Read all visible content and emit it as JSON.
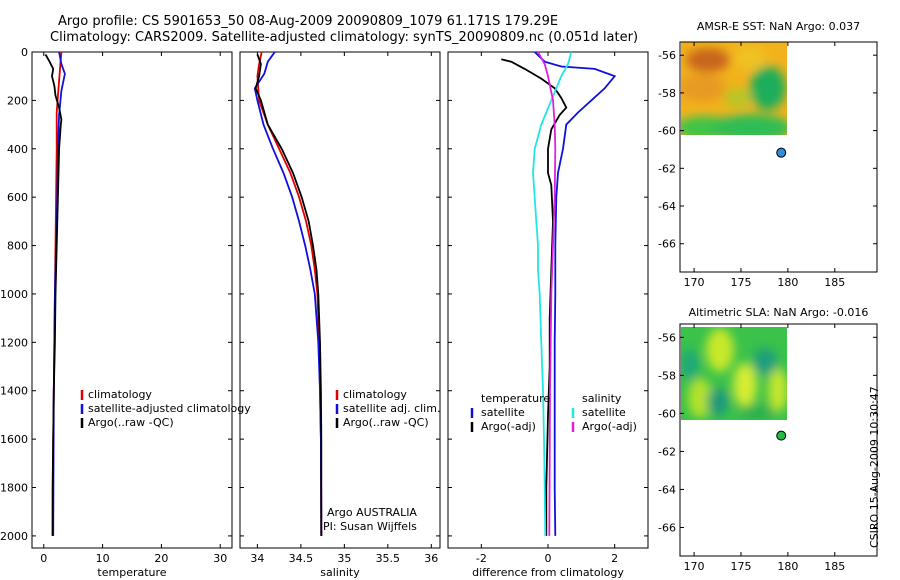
{
  "header": {
    "line1": "Argo profile: CS 5901653_50 08-Aug-2009 20090809_1079 61.171S 179.29E",
    "line2": "Climatology: CARS2009. Satellite-adjusted climatology: synTS_20090809.nc (0.051d later)"
  },
  "stamp": "CSIRO 15-Aug-2009 10:30:47",
  "colors": {
    "red": "#e00000",
    "blue": "#1010dd",
    "black": "#000000",
    "cyan": "#22e5e5",
    "magenta": "#dd22dd"
  },
  "chart_data": [
    {
      "type": "line",
      "xlabel": "temperature",
      "xlim": [
        -2,
        32
      ],
      "xticks": [
        0,
        10,
        20,
        30
      ],
      "ylim": [
        2050,
        0
      ],
      "yticks": [
        0,
        200,
        400,
        600,
        800,
        1000,
        1200,
        1400,
        1600,
        1800,
        2000
      ],
      "legend": [
        "climatology",
        "satellite-adjusted climatology",
        "Argo(..raw -QC)"
      ],
      "series": [
        {
          "name": "climatology",
          "color": "red",
          "x": [
            3.0,
            2.8,
            2.5,
            2.2,
            2.2,
            2.1,
            2.0,
            1.9,
            1.8,
            1.7,
            1.6,
            1.5
          ],
          "y": [
            0,
            60,
            150,
            250,
            400,
            600,
            800,
            1000,
            1200,
            1400,
            1600,
            2000
          ]
        },
        {
          "name": "satellite-adjusted climatology",
          "color": "blue",
          "x": [
            2.6,
            3.0,
            3.6,
            3.0,
            2.6,
            2.4,
            2.3,
            2.1,
            1.9,
            1.7,
            1.6
          ],
          "y": [
            0,
            50,
            90,
            160,
            260,
            400,
            600,
            800,
            1000,
            1400,
            2000
          ]
        },
        {
          "name": "Argo(..raw -QC)",
          "color": "black",
          "x": [
            0.3,
            1.0,
            1.6,
            1.4,
            1.8,
            2.0,
            2.6,
            3.0,
            2.9,
            2.6,
            2.4,
            2.2,
            2.0,
            1.9,
            1.7,
            1.6,
            1.5,
            1.5
          ],
          "y": [
            10,
            40,
            70,
            100,
            140,
            180,
            230,
            280,
            300,
            400,
            600,
            800,
            1000,
            1200,
            1400,
            1600,
            1800,
            2000
          ]
        }
      ]
    },
    {
      "type": "line",
      "xlabel": "salinity",
      "xlim": [
        33.8,
        36.1
      ],
      "xticks": [
        34,
        34.5,
        35,
        35.5,
        36
      ],
      "ylim": [
        2050,
        0
      ],
      "legend": [
        "climatology",
        "satellite adj. clim.",
        "Argo(..raw -QC)"
      ],
      "annotation": [
        "Argo AUSTRALIA",
        "PI: Susan Wijffels"
      ],
      "series": [
        {
          "name": "climatology",
          "color": "red",
          "x": [
            34.05,
            34.02,
            34.0,
            34.02,
            34.12,
            34.25,
            34.38,
            34.48,
            34.56,
            34.62,
            34.66,
            34.69,
            34.71,
            34.72,
            34.73,
            34.735
          ],
          "y": [
            0,
            50,
            100,
            200,
            300,
            400,
            500,
            600,
            700,
            800,
            900,
            1000,
            1200,
            1400,
            1600,
            2000
          ]
        },
        {
          "name": "satellite adj. clim.",
          "color": "blue",
          "x": [
            34.2,
            34.12,
            34.08,
            33.97,
            34.0,
            34.07,
            34.18,
            34.3,
            34.4,
            34.48,
            34.55,
            34.61,
            34.66,
            34.7,
            34.72,
            34.73,
            34.735
          ],
          "y": [
            0,
            40,
            90,
            150,
            200,
            300,
            400,
            500,
            600,
            700,
            800,
            900,
            1000,
            1200,
            1400,
            1600,
            2000
          ]
        },
        {
          "name": "Argo(..raw -QC)",
          "color": "black",
          "x": [
            34.0,
            34.04,
            34.02,
            33.98,
            34.04,
            34.12,
            34.28,
            34.41,
            34.51,
            34.59,
            34.64,
            34.68,
            34.7,
            34.72,
            34.73,
            34.735,
            34.735
          ],
          "y": [
            10,
            50,
            100,
            150,
            200,
            300,
            400,
            500,
            600,
            700,
            800,
            900,
            1000,
            1200,
            1400,
            1600,
            2000
          ]
        }
      ]
    },
    {
      "type": "line",
      "xlabel": "difference from climatology",
      "xlim": [
        -3,
        3
      ],
      "xticks": [
        -2,
        0,
        2
      ],
      "ylim": [
        2050,
        0
      ],
      "legend_columns": [
        {
          "header": "temperature",
          "entries": [
            "satellite",
            "Argo(-adj)"
          ]
        },
        {
          "header": "salinity",
          "entries": [
            "satellite",
            "Argo(-adj)"
          ]
        }
      ],
      "series": [
        {
          "name": "temperature satellite",
          "color": "blue",
          "x": [
            -0.4,
            -0.1,
            0.4,
            1.4,
            2.0,
            1.7,
            1.3,
            0.9,
            0.55,
            0.45,
            0.3,
            0.25,
            0.22,
            0.22,
            0.2,
            0.2,
            0.2,
            0.2,
            0.22
          ],
          "y": [
            0,
            40,
            60,
            70,
            100,
            150,
            200,
            250,
            300,
            400,
            500,
            600,
            800,
            1000,
            1200,
            1400,
            1600,
            1800,
            2000
          ]
        },
        {
          "name": "temperature Argo(-adj)",
          "color": "black",
          "x": [
            -1.4,
            -1.1,
            -0.7,
            -0.2,
            0.2,
            0.4,
            0.55,
            0.35,
            0.1,
            0.0,
            0.0,
            0.1,
            0.15,
            0.1,
            0.05,
            0.05,
            0.0,
            -0.05,
            -0.05
          ],
          "y": [
            30,
            40,
            70,
            110,
            150,
            190,
            230,
            260,
            320,
            400,
            500,
            550,
            700,
            900,
            1100,
            1300,
            1500,
            1800,
            2000
          ]
        },
        {
          "name": "salinity satellite",
          "color": "cyan",
          "x": [
            0.7,
            0.6,
            0.4,
            0.1,
            -0.2,
            -0.4,
            -0.45,
            -0.4,
            -0.35,
            -0.3,
            -0.3,
            -0.25,
            -0.2,
            -0.15,
            -0.12,
            -0.1,
            -0.08
          ],
          "y": [
            0,
            50,
            100,
            200,
            300,
            400,
            500,
            600,
            700,
            800,
            900,
            1000,
            1200,
            1400,
            1600,
            1800,
            2000
          ]
        },
        {
          "name": "salinity Argo(-adj)",
          "color": "magenta",
          "x": [
            -0.3,
            -0.1,
            0.0,
            0.15,
            0.2,
            0.22,
            0.2,
            0.15,
            0.1,
            0.08,
            0.06,
            0.05,
            0.04
          ],
          "y": [
            0,
            50,
            100,
            200,
            300,
            400,
            600,
            800,
            1000,
            1200,
            1400,
            1700,
            2000
          ]
        }
      ]
    },
    {
      "type": "heatmap",
      "title": "AMSR-E SST: NaN Argo: 0.037",
      "xlim": [
        168.5,
        189.5
      ],
      "ylim": [
        -67.5,
        -55.3
      ],
      "xticks": [
        170,
        175,
        180,
        185
      ],
      "yticks": [
        -56,
        -58,
        -60,
        -62,
        -64,
        -66
      ],
      "argo_position": {
        "lon": 179.29,
        "lat": -61.171,
        "color": "#2d8fd8"
      }
    },
    {
      "type": "heatmap",
      "title": "Altimetric SLA: NaN Argo: -0.016",
      "xlim": [
        168.5,
        189.5
      ],
      "ylim": [
        -67.5,
        -55.3
      ],
      "xticks": [
        170,
        175,
        180,
        185
      ],
      "yticks": [
        -56,
        -58,
        -60,
        -62,
        -64,
        -66
      ],
      "argo_position": {
        "lon": 179.29,
        "lat": -61.171,
        "color": "#22bb44"
      }
    }
  ]
}
